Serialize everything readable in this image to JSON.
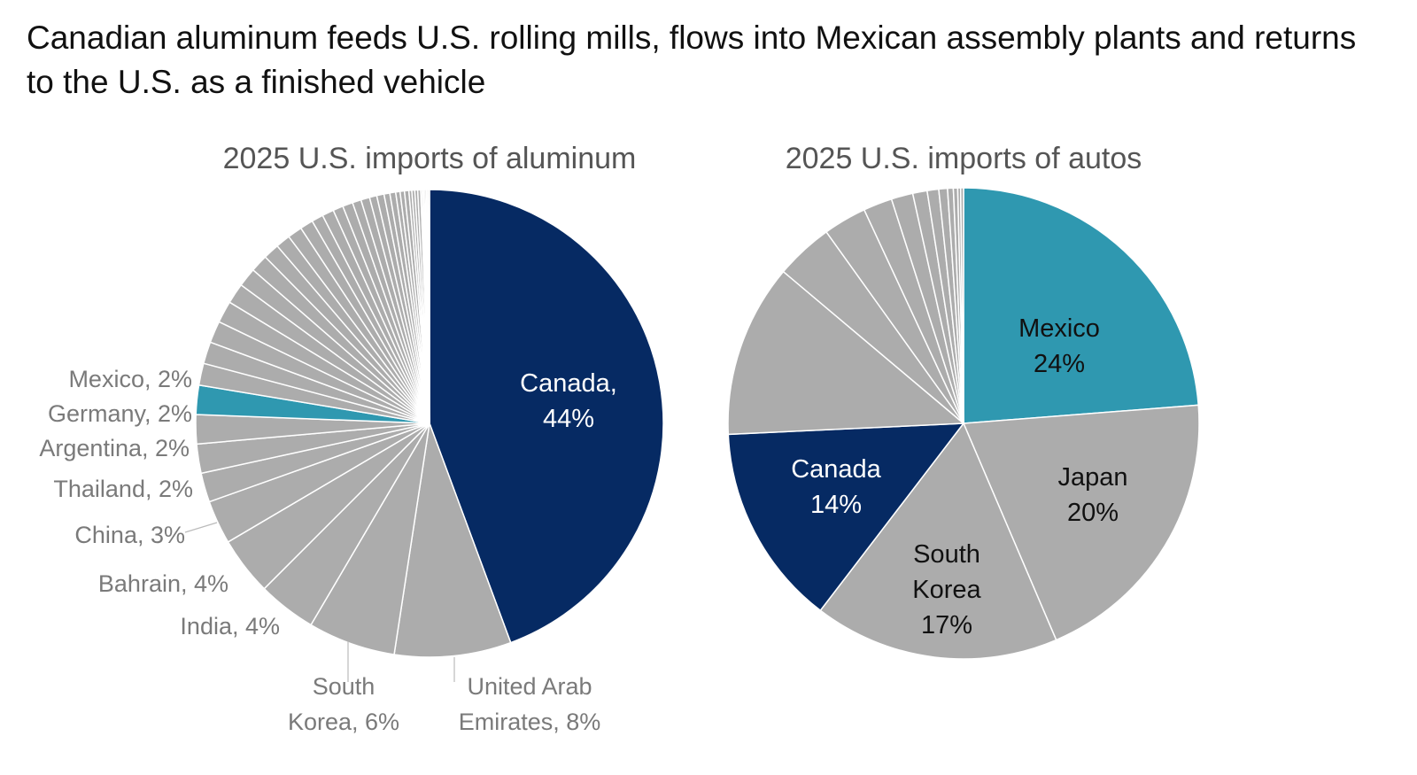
{
  "title": "Canadian aluminum feeds U.S. rolling mills, flows into Mexican assembly plants and returns to the U.S. as a finished vehicle",
  "colors": {
    "canada": "#062a63",
    "mexico": "#2f98b0",
    "other": "#acacac",
    "divider": "#ffffff",
    "label_gray": "#7a7a7a",
    "leader": "#bbbbbb"
  },
  "chart_data": [
    {
      "type": "pie",
      "title": "2025 U.S. imports of aluminum",
      "start": "12 o'clock",
      "direction": "clockwise",
      "slices": [
        {
          "name": "Canada",
          "value": 44,
          "label": [
            "Canada,",
            "44%"
          ],
          "color": "#062a63",
          "label_style": "inside"
        },
        {
          "name": "United Arab Emirates",
          "value": 8,
          "label": [
            "United Arab",
            "Emirates, 8%"
          ],
          "color": "#acacac",
          "label_style": "outside"
        },
        {
          "name": "South Korea",
          "value": 6,
          "label": [
            "South",
            "Korea, 6%"
          ],
          "color": "#acacac",
          "label_style": "outside"
        },
        {
          "name": "India",
          "value": 4,
          "label": [
            "India, 4%"
          ],
          "color": "#acacac",
          "label_style": "outside"
        },
        {
          "name": "Bahrain",
          "value": 4,
          "label": [
            "Bahrain, 4%"
          ],
          "color": "#acacac",
          "label_style": "outside"
        },
        {
          "name": "China",
          "value": 3,
          "label": [
            "China, 3%"
          ],
          "color": "#acacac",
          "label_style": "outside"
        },
        {
          "name": "Thailand",
          "value": 2,
          "label": [
            "Thailand, 2%"
          ],
          "color": "#acacac",
          "label_style": "outside"
        },
        {
          "name": "Argentina",
          "value": 2,
          "label": [
            "Argentina, 2%"
          ],
          "color": "#acacac",
          "label_style": "outside"
        },
        {
          "name": "Germany",
          "value": 2,
          "label": [
            "Germany, 2%"
          ],
          "color": "#acacac",
          "label_style": "outside"
        },
        {
          "name": "Mexico",
          "value": 2,
          "label": [
            "Mexico, 2%"
          ],
          "color": "#2f98b0",
          "label_style": "outside-dark"
        },
        {
          "name": "",
          "value": 1.5,
          "label": [],
          "color": "#acacac"
        },
        {
          "name": "",
          "value": 1.5,
          "label": [],
          "color": "#acacac"
        },
        {
          "name": "",
          "value": 1.5,
          "label": [],
          "color": "#acacac"
        },
        {
          "name": "",
          "value": 1.5,
          "label": [],
          "color": "#acacac"
        },
        {
          "name": "",
          "value": 1.4,
          "label": [],
          "color": "#acacac"
        },
        {
          "name": "",
          "value": 1.3,
          "label": [],
          "color": "#acacac"
        },
        {
          "name": "",
          "value": 1.2,
          "label": [],
          "color": "#acacac"
        },
        {
          "name": "",
          "value": 1.1,
          "label": [],
          "color": "#acacac"
        },
        {
          "name": "",
          "value": 1.0,
          "label": [],
          "color": "#acacac"
        },
        {
          "name": "",
          "value": 1.0,
          "label": [],
          "color": "#acacac"
        },
        {
          "name": "",
          "value": 0.9,
          "label": [],
          "color": "#acacac"
        },
        {
          "name": "",
          "value": 0.8,
          "label": [],
          "color": "#acacac"
        },
        {
          "name": "",
          "value": 0.8,
          "label": [],
          "color": "#acacac"
        },
        {
          "name": "",
          "value": 0.7,
          "label": [],
          "color": "#acacac"
        },
        {
          "name": "",
          "value": 0.7,
          "label": [],
          "color": "#acacac"
        },
        {
          "name": "",
          "value": 0.6,
          "label": [],
          "color": "#acacac"
        },
        {
          "name": "",
          "value": 0.6,
          "label": [],
          "color": "#acacac"
        },
        {
          "name": "",
          "value": 0.5,
          "label": [],
          "color": "#acacac"
        },
        {
          "name": "",
          "value": 0.5,
          "label": [],
          "color": "#acacac"
        },
        {
          "name": "",
          "value": 0.4,
          "label": [],
          "color": "#acacac"
        },
        {
          "name": "",
          "value": 0.4,
          "label": [],
          "color": "#acacac"
        },
        {
          "name": "",
          "value": 0.3,
          "label": [],
          "color": "#acacac"
        },
        {
          "name": "",
          "value": 0.3,
          "label": [],
          "color": "#acacac"
        },
        {
          "name": "",
          "value": 0.3,
          "label": [],
          "color": "#acacac"
        },
        {
          "name": "",
          "value": 0.2,
          "label": [],
          "color": "#acacac"
        },
        {
          "name": "",
          "value": 0.2,
          "label": [],
          "color": "#acacac"
        },
        {
          "name": "",
          "value": 0.2,
          "label": [],
          "color": "#acacac"
        },
        {
          "name": "",
          "value": 0.2,
          "label": [],
          "color": "#acacac"
        },
        {
          "name": "",
          "value": 0.1,
          "label": [],
          "color": "#acacac"
        },
        {
          "name": "",
          "value": 0.1,
          "label": [],
          "color": "#acacac"
        },
        {
          "name": "",
          "value": 0.1,
          "label": [],
          "color": "#acacac"
        },
        {
          "name": "",
          "value": 0.1,
          "label": [],
          "color": "#acacac"
        },
        {
          "name": "",
          "value": 0.1,
          "label": [],
          "color": "#acacac"
        },
        {
          "name": "",
          "value": 0.1,
          "label": [],
          "color": "#acacac"
        }
      ]
    },
    {
      "type": "pie",
      "title": "2025 U.S. imports of autos",
      "start": "12 o'clock",
      "direction": "clockwise",
      "slices": [
        {
          "name": "Mexico",
          "value": 24,
          "label": [
            "Mexico",
            "24%"
          ],
          "color": "#2f98b0",
          "label_style": "inside-dark"
        },
        {
          "name": "Japan",
          "value": 20,
          "label": [
            "Japan",
            "20%"
          ],
          "color": "#acacac",
          "label_style": "inside-dark"
        },
        {
          "name": "South Korea",
          "value": 17,
          "label": [
            "South",
            "Korea",
            "17%"
          ],
          "color": "#acacac",
          "label_style": "inside-dark"
        },
        {
          "name": "Canada",
          "value": 14,
          "label": [
            "Canada",
            "14%"
          ],
          "color": "#062a63",
          "label_style": "inside"
        },
        {
          "name": "",
          "value": 12,
          "label": [],
          "color": "#acacac"
        },
        {
          "name": "",
          "value": 4,
          "label": [],
          "color": "#acacac"
        },
        {
          "name": "",
          "value": 3,
          "label": [],
          "color": "#acacac"
        },
        {
          "name": "",
          "value": 2,
          "label": [],
          "color": "#acacac"
        },
        {
          "name": "",
          "value": 1.5,
          "label": [],
          "color": "#acacac"
        },
        {
          "name": "",
          "value": 1,
          "label": [],
          "color": "#acacac"
        },
        {
          "name": "",
          "value": 0.8,
          "label": [],
          "color": "#acacac"
        },
        {
          "name": "",
          "value": 0.6,
          "label": [],
          "color": "#acacac"
        },
        {
          "name": "",
          "value": 0.4,
          "label": [],
          "color": "#acacac"
        },
        {
          "name": "",
          "value": 0.3,
          "label": [],
          "color": "#acacac"
        },
        {
          "name": "",
          "value": 0.2,
          "label": [],
          "color": "#acacac"
        },
        {
          "name": "",
          "value": 0.2,
          "label": [],
          "color": "#acacac"
        }
      ]
    }
  ]
}
